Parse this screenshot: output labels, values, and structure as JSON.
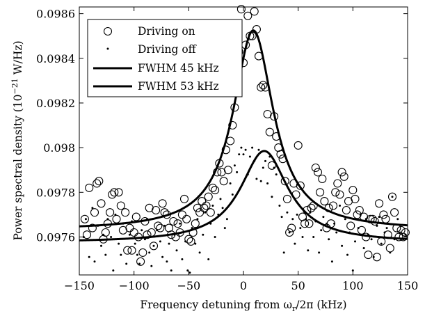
{
  "chart_data": {
    "type": "scatter",
    "xlabel": "Frequency detuning from ω_r/2π (kHz)",
    "xlabel_parts": {
      "before": "Frequency detuning from ω",
      "sub": "r",
      "after": "/2π (kHz)"
    },
    "ylabel": "Power spectral density (10^-21 W/Hz)",
    "ylabel_parts": {
      "before": "Power spectral density (10",
      "sup": "−21",
      "after": " W/Hz)"
    },
    "xlim": [
      -150,
      150
    ],
    "ylim": [
      0.09743,
      0.09863
    ],
    "x_ticks": [
      -150,
      -100,
      -50,
      0,
      50,
      100,
      150
    ],
    "x_tick_labels": [
      "−150",
      "−100",
      "−50",
      "0",
      "50",
      "100",
      "150"
    ],
    "y_ticks": [
      0.0976,
      0.0978,
      0.098,
      0.0982,
      0.0984,
      0.0986
    ],
    "y_tick_labels": [
      "0.0976",
      "0.0978",
      "0.098",
      "0.0982",
      "0.0984",
      "0.0986"
    ],
    "grid": false,
    "legend_position": "top-left",
    "series": [
      {
        "name": "Driving on",
        "style": "open-circle",
        "points": [
          [
            -145,
            0.09768
          ],
          [
            -143,
            0.09761
          ],
          [
            -141,
            0.09782
          ],
          [
            -138,
            0.09764
          ],
          [
            -136,
            0.09771
          ],
          [
            -134,
            0.09784
          ],
          [
            -132,
            0.09785
          ],
          [
            -130,
            0.09775
          ],
          [
            -128,
            0.09759
          ],
          [
            -126,
            0.09762
          ],
          [
            -124,
            0.09766
          ],
          [
            -122,
            0.09771
          ],
          [
            -120,
            0.09779
          ],
          [
            -118,
            0.0978
          ],
          [
            -116,
            0.09768
          ],
          [
            -114,
            0.0978
          ],
          [
            -112,
            0.09774
          ],
          [
            -110,
            0.09763
          ],
          [
            -108,
            0.09771
          ],
          [
            -106,
            0.09754
          ],
          [
            -104,
            0.09764
          ],
          [
            -102,
            0.09754
          ],
          [
            -100,
            0.09762
          ],
          [
            -98,
            0.09769
          ],
          [
            -96,
            0.0976
          ],
          [
            -94,
            0.09749
          ],
          [
            -92,
            0.09753
          ],
          [
            -90,
            0.09767
          ],
          [
            -88,
            0.09761
          ],
          [
            -86,
            0.09773
          ],
          [
            -84,
            0.09762
          ],
          [
            -82,
            0.09756
          ],
          [
            -80,
            0.09772
          ],
          [
            -78,
            0.09765
          ],
          [
            -76,
            0.09764
          ],
          [
            -74,
            0.09775
          ],
          [
            -72,
            0.09771
          ],
          [
            -70,
            0.0977
          ],
          [
            -68,
            0.09764
          ],
          [
            -66,
            0.09761
          ],
          [
            -64,
            0.09767
          ],
          [
            -62,
            0.0976
          ],
          [
            -60,
            0.09766
          ],
          [
            -58,
            0.09762
          ],
          [
            -56,
            0.0977
          ],
          [
            -54,
            0.09777
          ],
          [
            -52,
            0.09768
          ],
          [
            -50,
            0.09759
          ],
          [
            -48,
            0.09758
          ],
          [
            -46,
            0.09762
          ],
          [
            -44,
            0.09766
          ],
          [
            -42,
            0.09773
          ],
          [
            -40,
            0.09771
          ],
          [
            -38,
            0.09776
          ],
          [
            -36,
            0.09773
          ],
          [
            -34,
            0.09774
          ],
          [
            -32,
            0.09778
          ],
          [
            -30,
            0.09771
          ],
          [
            -28,
            0.09782
          ],
          [
            -26,
            0.09781
          ],
          [
            -24,
            0.09789
          ],
          [
            -22,
            0.09793
          ],
          [
            -20,
            0.09789
          ],
          [
            -18,
            0.09785
          ],
          [
            -16,
            0.09799
          ],
          [
            -14,
            0.0979
          ],
          [
            -12,
            0.09803
          ],
          [
            -10,
            0.0981
          ],
          [
            -8,
            0.09818
          ],
          [
            -6,
            0.09827
          ],
          [
            -4,
            0.09843
          ],
          [
            -2,
            0.09862
          ],
          [
            0,
            0.09838
          ],
          [
            2,
            0.09846
          ],
          [
            4,
            0.09859
          ],
          [
            6,
            0.0985
          ],
          [
            8,
            0.0985
          ],
          [
            10,
            0.09861
          ],
          [
            12,
            0.09853
          ],
          [
            14,
            0.09841
          ],
          [
            16,
            0.09827
          ],
          [
            18,
            0.09828
          ],
          [
            20,
            0.09827
          ],
          [
            22,
            0.09815
          ],
          [
            24,
            0.09807
          ],
          [
            26,
            0.09792
          ],
          [
            28,
            0.09814
          ],
          [
            30,
            0.09805
          ],
          [
            32,
            0.098
          ],
          [
            34,
            0.09797
          ],
          [
            36,
            0.09795
          ],
          [
            38,
            0.09785
          ],
          [
            40,
            0.09777
          ],
          [
            42,
            0.09762
          ],
          [
            44,
            0.09764
          ],
          [
            46,
            0.09784
          ],
          [
            48,
            0.09779
          ],
          [
            50,
            0.09801
          ],
          [
            52,
            0.09783
          ],
          [
            54,
            0.09769
          ],
          [
            56,
            0.09766
          ],
          [
            58,
            0.09772
          ],
          [
            60,
            0.09766
          ],
          [
            62,
            0.09773
          ],
          [
            64,
            0.09774
          ],
          [
            66,
            0.09791
          ],
          [
            68,
            0.09789
          ],
          [
            70,
            0.0978
          ],
          [
            72,
            0.09786
          ],
          [
            74,
            0.09776
          ],
          [
            76,
            0.09764
          ],
          [
            78,
            0.09773
          ],
          [
            80,
            0.09766
          ],
          [
            82,
            0.09774
          ],
          [
            84,
            0.0978
          ],
          [
            86,
            0.09784
          ],
          [
            88,
            0.09779
          ],
          [
            90,
            0.09789
          ],
          [
            92,
            0.09787
          ],
          [
            94,
            0.09772
          ],
          [
            96,
            0.09776
          ],
          [
            98,
            0.09765
          ],
          [
            100,
            0.09781
          ],
          [
            102,
            0.09777
          ],
          [
            104,
            0.0977
          ],
          [
            106,
            0.09772
          ],
          [
            108,
            0.09763
          ],
          [
            110,
            0.09769
          ],
          [
            112,
            0.0976
          ],
          [
            114,
            0.09752
          ],
          [
            116,
            0.09768
          ],
          [
            118,
            0.09768
          ],
          [
            120,
            0.09767
          ],
          [
            122,
            0.09751
          ],
          [
            124,
            0.09775
          ],
          [
            126,
            0.09758
          ],
          [
            128,
            0.0977
          ],
          [
            130,
            0.09768
          ],
          [
            132,
            0.09761
          ],
          [
            134,
            0.09755
          ],
          [
            136,
            0.09778
          ],
          [
            138,
            0.09771
          ],
          [
            140,
            0.09764
          ],
          [
            142,
            0.0976
          ],
          [
            144,
            0.09763
          ],
          [
            146,
            0.0976
          ],
          [
            148,
            0.09762
          ]
        ]
      },
      {
        "name": "Driving off",
        "style": "dot",
        "points": [
          [
            -146,
            0.0976
          ],
          [
            -144,
            0.09768
          ],
          [
            -141,
            0.09751
          ],
          [
            -138,
            0.09773
          ],
          [
            -136,
            0.09749
          ],
          [
            -133,
            0.09765
          ],
          [
            -130,
            0.09756
          ],
          [
            -128,
            0.09761
          ],
          [
            -126,
            0.09752
          ],
          [
            -124,
            0.09768
          ],
          [
            -121,
            0.0976
          ],
          [
            -119,
            0.09745
          ],
          [
            -117,
            0.0977
          ],
          [
            -114,
            0.09757
          ],
          [
            -112,
            0.09752
          ],
          [
            -110,
            0.09766
          ],
          [
            -107,
            0.09748
          ],
          [
            -104,
            0.09761
          ],
          [
            -102,
            0.09767
          ],
          [
            -99,
            0.09757
          ],
          [
            -97,
            0.09752
          ],
          [
            -95,
            0.09748
          ],
          [
            -93,
            0.09763
          ],
          [
            -90,
            0.09759
          ],
          [
            -88,
            0.09768
          ],
          [
            -86,
            0.09753
          ],
          [
            -84,
            0.09747
          ],
          [
            -82,
            0.09756
          ],
          [
            -79,
            0.09763
          ],
          [
            -76,
            0.09758
          ],
          [
            -74,
            0.09751
          ],
          [
            -72,
            0.09765
          ],
          [
            -70,
            0.09749
          ],
          [
            -68,
            0.09757
          ],
          [
            -66,
            0.09745
          ],
          [
            -63,
            0.09761
          ],
          [
            -61,
            0.09754
          ],
          [
            -58,
            0.09766
          ],
          [
            -56,
            0.0975
          ],
          [
            -53,
            0.09758
          ],
          [
            -51,
            0.09745
          ],
          [
            -49,
            0.09744
          ],
          [
            -47,
            0.09764
          ],
          [
            -44,
            0.09757
          ],
          [
            -42,
            0.09768
          ],
          [
            -40,
            0.09753
          ],
          [
            -37,
            0.09761
          ],
          [
            -35,
            0.09771
          ],
          [
            -32,
            0.0975
          ],
          [
            -30,
            0.09766
          ],
          [
            -28,
            0.09774
          ],
          [
            -26,
            0.0976
          ],
          [
            -23,
            0.0977
          ],
          [
            -21,
            0.09777
          ],
          [
            -19,
            0.09773
          ],
          [
            -17,
            0.09764
          ],
          [
            -15,
            0.09768
          ],
          [
            -12,
            0.09784
          ],
          [
            -10,
            0.09779
          ],
          [
            -8,
            0.09792
          ],
          [
            -6,
            0.09789
          ],
          [
            -4,
            0.09797
          ],
          [
            -2,
            0.098
          ],
          [
            0,
            0.09797
          ],
          [
            2,
            0.09799
          ],
          [
            4,
            0.09788
          ],
          [
            6,
            0.09796
          ],
          [
            8,
            0.098
          ],
          [
            10,
            0.09794
          ],
          [
            12,
            0.09786
          ],
          [
            14,
            0.09799
          ],
          [
            16,
            0.09785
          ],
          [
            18,
            0.09791
          ],
          [
            20,
            0.09794
          ],
          [
            22,
            0.09784
          ],
          [
            24,
            0.09796
          ],
          [
            26,
            0.09778
          ],
          [
            28,
            0.09791
          ],
          [
            30,
            0.09788
          ],
          [
            33,
            0.09774
          ],
          [
            35,
            0.09769
          ],
          [
            37,
            0.09753
          ],
          [
            40,
            0.09771
          ],
          [
            42,
            0.09762
          ],
          [
            45,
            0.09768
          ],
          [
            47,
            0.09757
          ],
          [
            49,
            0.0977
          ],
          [
            52,
            0.09764
          ],
          [
            54,
            0.0976
          ],
          [
            57,
            0.09768
          ],
          [
            59,
            0.09754
          ],
          [
            61,
            0.09771
          ],
          [
            64,
            0.0976
          ],
          [
            66,
            0.09767
          ],
          [
            69,
            0.09753
          ],
          [
            71,
            0.09763
          ],
          [
            73,
            0.09769
          ],
          [
            76,
            0.09766
          ],
          [
            78,
            0.09759
          ],
          [
            81,
            0.09749
          ],
          [
            83,
            0.09766
          ],
          [
            85,
            0.09762
          ],
          [
            88,
            0.09774
          ],
          [
            90,
            0.09756
          ],
          [
            93,
            0.09768
          ],
          [
            95,
            0.09752
          ],
          [
            97,
            0.09762
          ],
          [
            100,
            0.09745
          ],
          [
            102,
            0.09758
          ],
          [
            105,
            0.09764
          ],
          [
            107,
            0.0977
          ],
          [
            110,
            0.09755
          ],
          [
            112,
            0.09768
          ],
          [
            114,
            0.09761
          ],
          [
            117,
            0.09759
          ],
          [
            119,
            0.09751
          ],
          [
            122,
            0.09765
          ],
          [
            124,
            0.09769
          ],
          [
            126,
            0.09757
          ],
          [
            129,
            0.09762
          ],
          [
            131,
            0.09764
          ],
          [
            134,
            0.09753
          ],
          [
            136,
            0.09778
          ],
          [
            138,
            0.09759
          ],
          [
            141,
            0.09768
          ],
          [
            143,
            0.09762
          ],
          [
            146,
            0.09759
          ],
          [
            148,
            0.09761
          ]
        ]
      },
      {
        "name": "FWHM 45 kHz",
        "style": "line",
        "model": {
          "center": 9,
          "fwhm": 45,
          "baseline": 0.09763,
          "peak": 0.098525
        }
      },
      {
        "name": "FWHM 53 kHz",
        "style": "line",
        "model": {
          "center": 19,
          "fwhm": 53,
          "baseline": 0.097575,
          "peak": 0.097985
        }
      }
    ]
  }
}
